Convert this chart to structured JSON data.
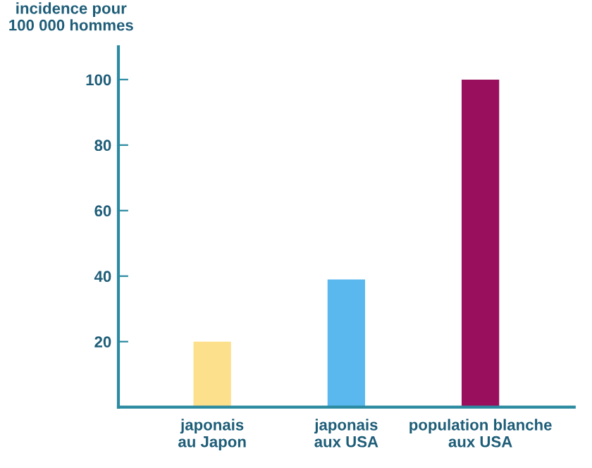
{
  "chart_data": {
    "type": "bar",
    "ylabel": "incidence pour\n100 000 hommes",
    "categories": [
      "japonais\nau Japon",
      "japonais\naux USA",
      "population blanche\naux USA"
    ],
    "values": [
      20,
      39,
      100
    ],
    "colors": [
      "#fde08c",
      "#5ab8ef",
      "#9a0e5e"
    ],
    "ylim": [
      0,
      110
    ],
    "yticks": [
      20,
      40,
      60,
      80,
      100
    ],
    "grid": false,
    "legend": false
  }
}
